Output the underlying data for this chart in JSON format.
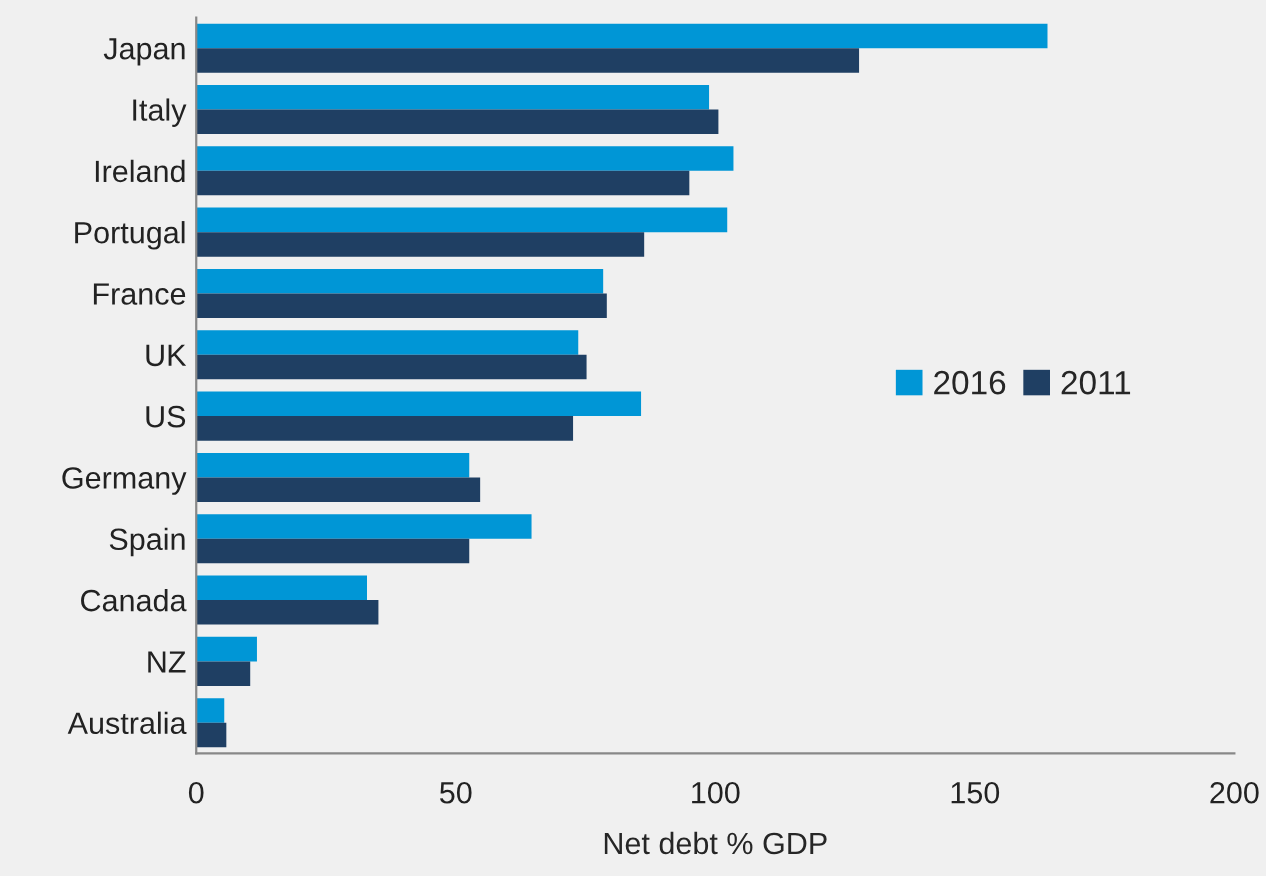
{
  "chart_data": {
    "type": "bar",
    "orientation": "horizontal",
    "xlabel": "Net debt % GDP",
    "categories": [
      "Japan",
      "Italy",
      "Ireland",
      "Portugal",
      "France",
      "UK",
      "US",
      "Germany",
      "Spain",
      "Canada",
      "NZ",
      "Australia"
    ],
    "series": [
      {
        "name": "2016",
        "color": "#0096d6",
        "values": [
          164,
          98.8,
          103.5,
          102.3,
          78.4,
          73.6,
          85.7,
          52.6,
          64.6,
          32.9,
          11.7,
          5.4
        ]
      },
      {
        "name": "2011",
        "color": "#1f3f63",
        "values": [
          127.7,
          100.6,
          95,
          86.3,
          79.1,
          75.2,
          72.6,
          54.7,
          52.6,
          35.1,
          10.4,
          5.8
        ]
      }
    ],
    "xlim": [
      0,
      200
    ],
    "xticks": [
      0,
      50,
      100,
      150,
      200
    ],
    "grid": false,
    "legend": "right"
  }
}
